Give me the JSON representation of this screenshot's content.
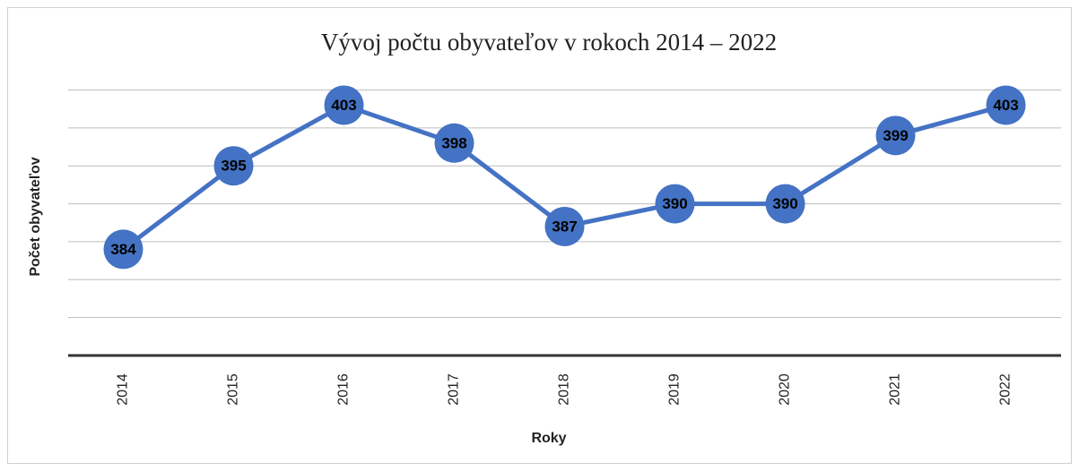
{
  "chart_data": {
    "type": "line",
    "title": "Vývoj počtu obyvateľov v rokoch 2014 – 2022",
    "x_label": "Roky",
    "y_label": "Počet obyvateľov",
    "categories": [
      "2014",
      "2015",
      "2016",
      "2017",
      "2018",
      "2019",
      "2020",
      "2021",
      "2022"
    ],
    "values": [
      384,
      395,
      403,
      398,
      387,
      390,
      390,
      399,
      403
    ],
    "color": "#4472c4",
    "ylim": [
      370,
      405
    ],
    "yticks": [
      370,
      375,
      380,
      385,
      390,
      395,
      400,
      405
    ],
    "grid": true
  }
}
